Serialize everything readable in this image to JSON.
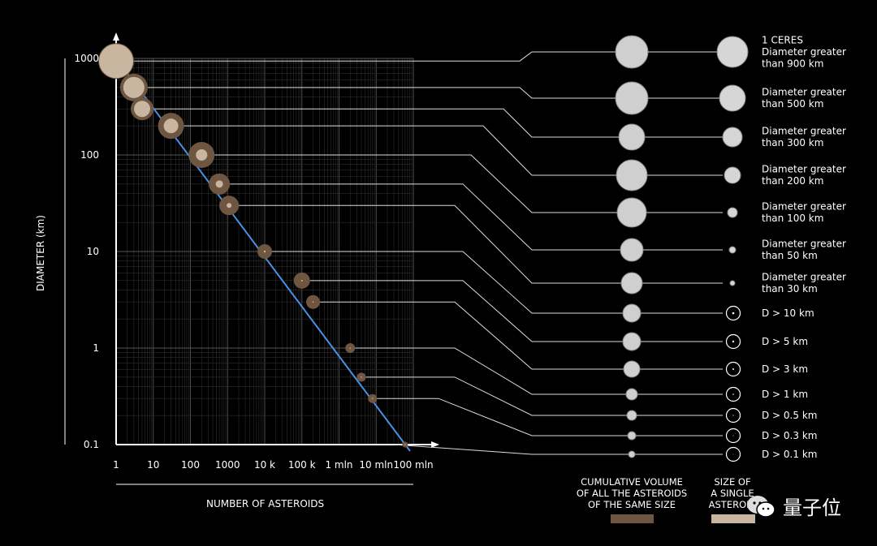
{
  "chart_data": {
    "type": "scatter",
    "xlabel": "NUMBER OF ASTEROIDS",
    "ylabel": "DIAMETER (km)",
    "x_scale": "log",
    "y_scale": "log",
    "xlim": [
      1,
      100000000
    ],
    "ylim": [
      0.1,
      1000
    ],
    "grid": true,
    "x_tick_labels": [
      "1",
      "10",
      "100",
      "1000",
      "10 k",
      "100 k",
      "1 mln",
      "10 mln",
      "100 mln"
    ],
    "x_tick_values": [
      1,
      10,
      100,
      1000,
      10000,
      100000,
      1000000,
      10000000,
      100000000
    ],
    "y_tick_labels": [
      "1000",
      "100",
      "10",
      "1",
      "0.1"
    ],
    "y_tick_values": [
      1000,
      100,
      10,
      1,
      0.1
    ],
    "series": [
      {
        "points": [
          {
            "x": 1,
            "y": 940,
            "label": "1 CERES\nDiameter greater\nthan 900 km"
          },
          {
            "x": 3,
            "y": 500,
            "label": "Diameter greater\nthan 500 km"
          },
          {
            "x": 5,
            "y": 300,
            "label": "Diameter greater\nthan 300 km"
          },
          {
            "x": 30,
            "y": 200,
            "label": "Diameter greater\nthan 200 km"
          },
          {
            "x": 200,
            "y": 100,
            "label": "Diameter greater\nthan 100 km"
          },
          {
            "x": 600,
            "y": 50,
            "label": "Diameter greater\nthan 50 km"
          },
          {
            "x": 1100,
            "y": 30,
            "label": "Diameter greater\nthan 30 km"
          },
          {
            "x": 10000,
            "y": 10,
            "label": "D > 10 km"
          },
          {
            "x": 100000,
            "y": 5,
            "label": "D > 5 km"
          },
          {
            "x": 200000,
            "y": 3,
            "label": "D > 3 km"
          },
          {
            "x": 2000000,
            "y": 1,
            "label": "D > 1 km"
          },
          {
            "x": 4000000,
            "y": 0.5,
            "label": "D > 0.5 km"
          },
          {
            "x": 8000000,
            "y": 0.3,
            "label": "D > 0.3 km"
          },
          {
            "x": 60000000,
            "y": 0.1,
            "label": "D > 0.1 km"
          }
        ]
      }
    ],
    "trend_line": {
      "from": [
        1,
        1000
      ],
      "to": [
        100000000,
        0.1
      ]
    }
  },
  "legend": {
    "cumulative": "CUMULATIVE VOLUME\nOF ALL THE ASTEROIDS\nOF THE SAME SIZE",
    "single": "SIZE OF\nA SINGLE\nASTEROID"
  },
  "colors": {
    "cumulative": "#6e5640",
    "single": "#c9b6a0",
    "trend": "#4a90e2",
    "grid": "#3a3a3a"
  },
  "watermark": "量子位"
}
